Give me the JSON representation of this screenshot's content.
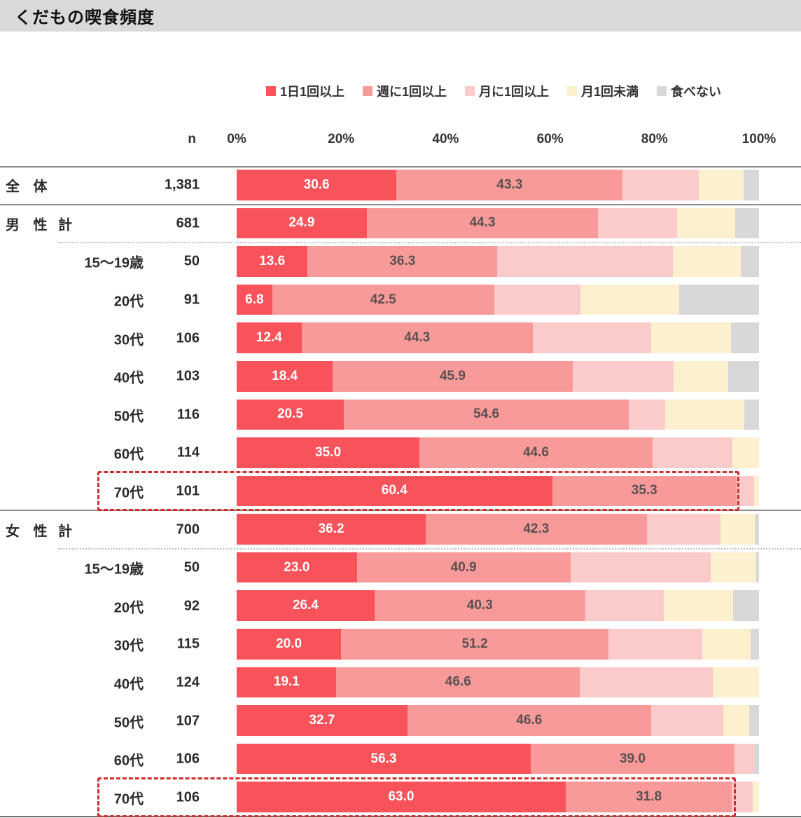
{
  "title": "くだもの喫食頻度",
  "legend": [
    {
      "label": "1日1回以上",
      "color": "#f8525a"
    },
    {
      "label": "週に1回以上",
      "color": "#f99a9a"
    },
    {
      "label": "月に1回以上",
      "color": "#fbcaca"
    },
    {
      "label": "月1回未満",
      "color": "#fcf0ce"
    },
    {
      "label": "食べない",
      "color": "#d8d8d8"
    }
  ],
  "axis": {
    "n_label": "n",
    "ticks": [
      "0%",
      "20%",
      "40%",
      "60%",
      "80%",
      "100%"
    ]
  },
  "colors": {
    "titlebar_bg": "#d9d9d9",
    "highlight_border": "#cc2e2e",
    "bar_label_dark": "#5a5050",
    "bar_label_white": "#ffffff"
  },
  "chart_data": {
    "type": "bar",
    "stacked": true,
    "orientation": "horizontal",
    "unit": "%",
    "xlim": [
      0,
      100
    ],
    "x_ticks": [
      "0%",
      "20%",
      "40%",
      "60%",
      "80%",
      "100%"
    ],
    "series_names": [
      "1日1回以上",
      "週に1回以上",
      "月に1回以上",
      "月1回未満",
      "食べない"
    ],
    "rows": [
      {
        "group": "全 体",
        "kei": "",
        "age": "",
        "n": "1,381",
        "values": [
          30.6,
          43.3,
          14.6,
          8.5,
          3.0
        ],
        "labels": [
          "30.6",
          "43.3"
        ],
        "highlight": false
      },
      {
        "group": "男 性",
        "kei": "計",
        "age": "",
        "n": "681",
        "values": [
          24.9,
          44.3,
          15.1,
          11.1,
          4.6
        ],
        "labels": [
          "24.9",
          "44.3"
        ],
        "highlight": false
      },
      {
        "group": "",
        "kei": "",
        "age": "15～19歳",
        "n": "50",
        "values": [
          13.6,
          36.3,
          33.6,
          13.0,
          3.5
        ],
        "labels": [
          "13.6",
          "36.3"
        ],
        "highlight": false
      },
      {
        "group": "",
        "kei": "",
        "age": "20代",
        "n": "91",
        "values": [
          6.8,
          42.5,
          16.5,
          18.9,
          15.3
        ],
        "labels": [
          "6.8",
          "42.5"
        ],
        "highlight": false
      },
      {
        "group": "",
        "kei": "",
        "age": "30代",
        "n": "106",
        "values": [
          12.4,
          44.3,
          22.7,
          15.3,
          5.3
        ],
        "labels": [
          "12.4",
          "44.3"
        ],
        "highlight": false
      },
      {
        "group": "",
        "kei": "",
        "age": "40代",
        "n": "103",
        "values": [
          18.4,
          45.9,
          19.3,
          10.5,
          5.9
        ],
        "labels": [
          "18.4",
          "45.9"
        ],
        "highlight": false
      },
      {
        "group": "",
        "kei": "",
        "age": "50代",
        "n": "116",
        "values": [
          20.5,
          54.6,
          6.9,
          15.2,
          2.8
        ],
        "labels": [
          "20.5",
          "54.6"
        ],
        "highlight": false
      },
      {
        "group": "",
        "kei": "",
        "age": "60代",
        "n": "114",
        "values": [
          35.0,
          44.6,
          15.3,
          5.1,
          0.0
        ],
        "labels": [
          "35.0",
          "44.6"
        ],
        "highlight": false
      },
      {
        "group": "",
        "kei": "",
        "age": "70代",
        "n": "101",
        "values": [
          60.4,
          35.3,
          3.3,
          1.0,
          0.0
        ],
        "labels": [
          "60.4",
          "35.3"
        ],
        "highlight": true
      },
      {
        "group": "女 性",
        "kei": "計",
        "age": "",
        "n": "700",
        "values": [
          36.2,
          42.3,
          14.1,
          6.6,
          0.8
        ],
        "labels": [
          "36.2",
          "42.3"
        ],
        "highlight": false
      },
      {
        "group": "",
        "kei": "",
        "age": "15～19歳",
        "n": "50",
        "values": [
          23.0,
          40.9,
          26.8,
          8.8,
          0.5
        ],
        "labels": [
          "23.0",
          "40.9"
        ],
        "highlight": false
      },
      {
        "group": "",
        "kei": "",
        "age": "20代",
        "n": "92",
        "values": [
          26.4,
          40.3,
          15.1,
          13.2,
          5.0
        ],
        "labels": [
          "26.4",
          "40.3"
        ],
        "highlight": false
      },
      {
        "group": "",
        "kei": "",
        "age": "30代",
        "n": "115",
        "values": [
          20.0,
          51.2,
          17.9,
          9.3,
          1.6
        ],
        "labels": [
          "20.0",
          "51.2"
        ],
        "highlight": false
      },
      {
        "group": "",
        "kei": "",
        "age": "40代",
        "n": "124",
        "values": [
          19.1,
          46.6,
          25.4,
          8.9,
          0.0
        ],
        "labels": [
          "19.1",
          "46.6"
        ],
        "highlight": false
      },
      {
        "group": "",
        "kei": "",
        "age": "50代",
        "n": "107",
        "values": [
          32.7,
          46.6,
          13.8,
          5.0,
          1.9
        ],
        "labels": [
          "32.7",
          "46.6"
        ],
        "highlight": false
      },
      {
        "group": "",
        "kei": "",
        "age": "60代",
        "n": "106",
        "values": [
          56.3,
          39.0,
          3.7,
          0.0,
          1.0
        ],
        "labels": [
          "56.3",
          "39.0"
        ],
        "highlight": false
      },
      {
        "group": "",
        "kei": "",
        "age": "70代",
        "n": "106",
        "values": [
          63.0,
          31.8,
          4.0,
          1.2,
          0.0
        ],
        "labels": [
          "63.0",
          "31.8"
        ],
        "highlight": true
      }
    ]
  }
}
